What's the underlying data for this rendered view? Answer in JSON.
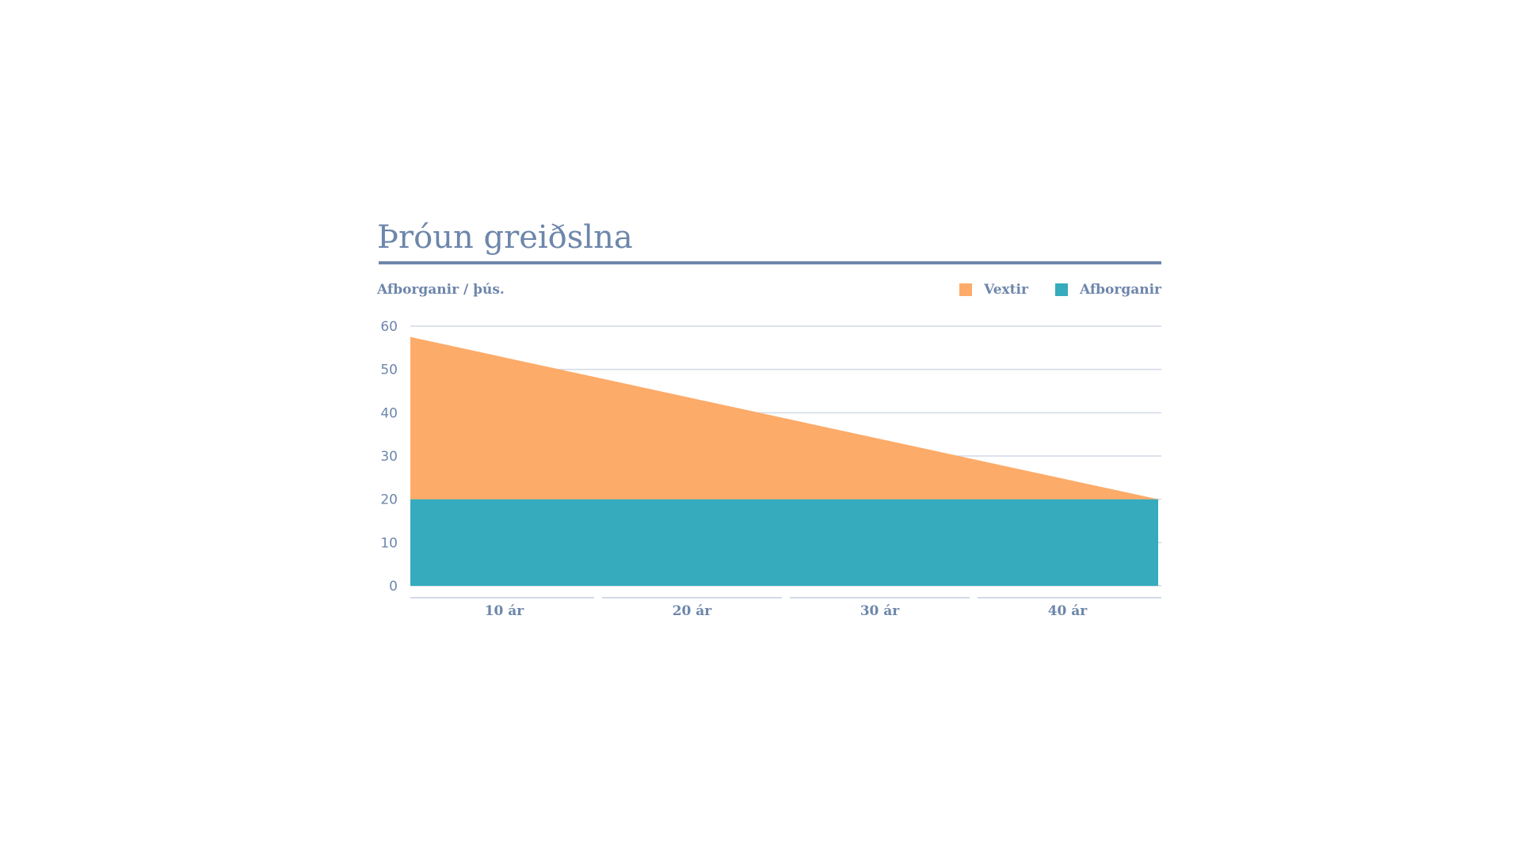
{
  "colors": {
    "text": "#6d86ab",
    "grid": "#d3d9e6",
    "vextir": "#fdab69",
    "afborganir": "#35abbd"
  },
  "chart_data": {
    "type": "area",
    "stacked": true,
    "title": "Þróun greiðslna",
    "ylabel": "Afborganir / þús.",
    "xlabel": "",
    "ylim": [
      0,
      60
    ],
    "yticks": [
      "0",
      "10",
      "20",
      "30",
      "40",
      "50",
      "60"
    ],
    "xlim": [
      0,
      40
    ],
    "categories": [
      "10 ár",
      "20 ár",
      "30 ár",
      "40 ár"
    ],
    "x": [
      0,
      40
    ],
    "series": [
      {
        "name": "Afborganir",
        "color": "#35abbd",
        "values": [
          20,
          20
        ]
      },
      {
        "name": "Vextir",
        "color": "#fdab69",
        "values": [
          37.5,
          0
        ]
      }
    ],
    "grid": true,
    "legend": "top-right"
  }
}
